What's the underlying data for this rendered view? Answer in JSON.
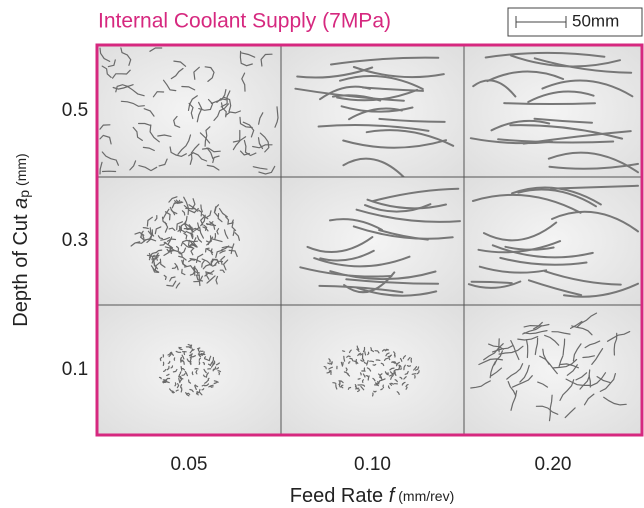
{
  "header": {
    "title": "Internal Coolant Supply (7MPa)",
    "scale_bar": "50mm"
  },
  "y_axis": {
    "text": "Depth of Cut ",
    "symbol": "a",
    "subscript": "p",
    "unit": "(mm)",
    "labels": [
      "0.5",
      "0.3",
      "0.1"
    ]
  },
  "x_axis": {
    "text": "Feed Rate ",
    "symbol": "f",
    "unit": "(mm/rev)",
    "labels": [
      "0.05",
      "0.10",
      "0.20"
    ]
  }
}
